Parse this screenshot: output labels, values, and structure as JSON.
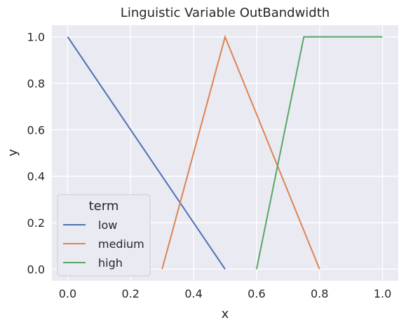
{
  "chart_data": {
    "type": "line",
    "title": "Linguistic Variable OutBandwidth",
    "xlabel": "x",
    "ylabel": "y",
    "xlim": [
      -0.05,
      1.05
    ],
    "ylim": [
      -0.05,
      1.05
    ],
    "x_ticks": [
      "0.0",
      "0.2",
      "0.4",
      "0.6",
      "0.8",
      "1.0"
    ],
    "y_ticks": [
      "0.0",
      "0.2",
      "0.4",
      "0.6",
      "0.8",
      "1.0"
    ],
    "grid": true,
    "legend": {
      "title": "term",
      "placement": "lower-left"
    },
    "series": [
      {
        "name": "low",
        "color": "#4c72b0",
        "x": [
          0.0,
          0.5
        ],
        "y": [
          1.0,
          0.0
        ]
      },
      {
        "name": "medium",
        "color": "#dd8452",
        "x": [
          0.3,
          0.5,
          0.8
        ],
        "y": [
          0.0,
          1.0,
          0.0
        ]
      },
      {
        "name": "high",
        "color": "#55a868",
        "x": [
          0.6,
          0.75,
          1.0
        ],
        "y": [
          0.0,
          1.0,
          1.0
        ]
      }
    ]
  }
}
